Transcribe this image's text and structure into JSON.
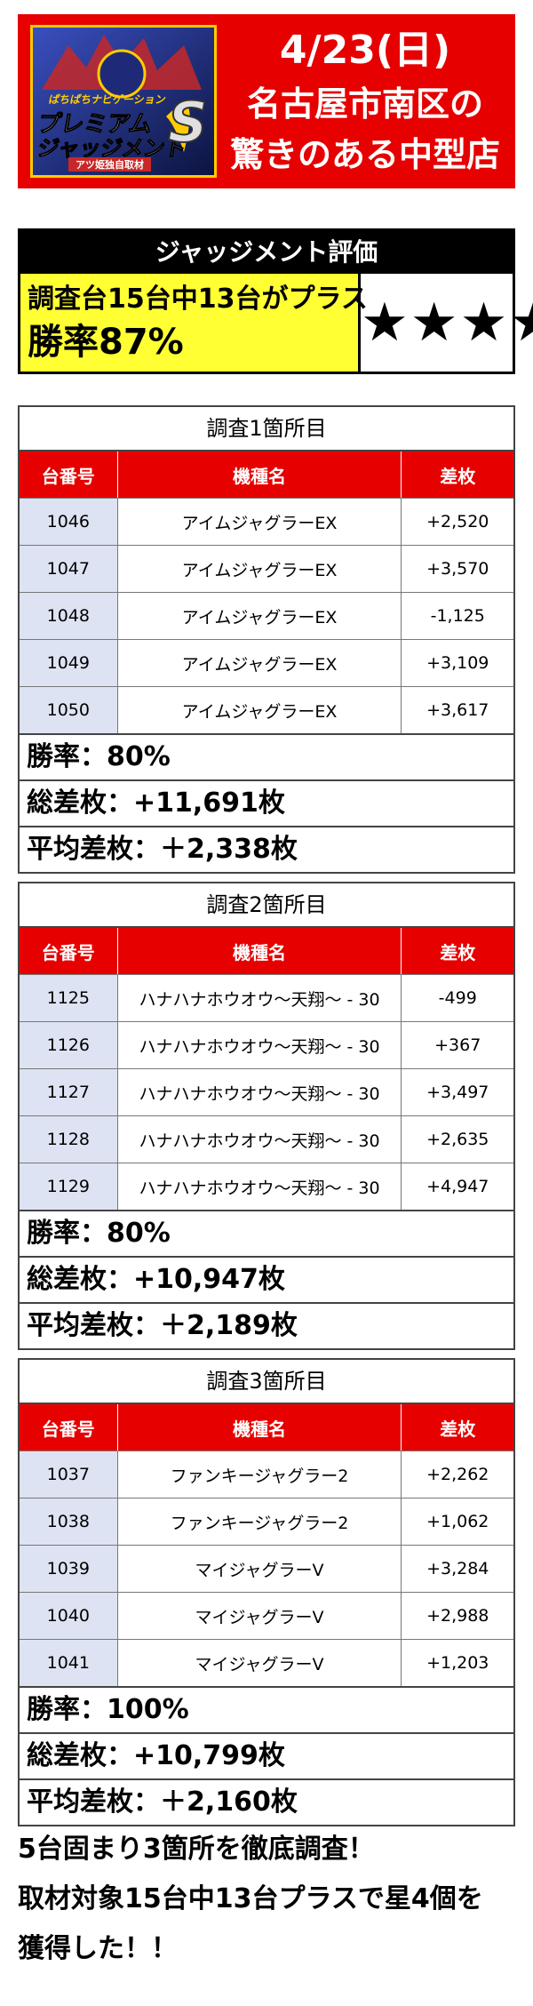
{
  "header": {
    "logo_line1": "ぱちぱちナビゲーション",
    "logo_line2": "プレミアム",
    "logo_line3": "ジャッジメント",
    "logo_mark": "S",
    "logo_sub": "アツ姫独自取材",
    "date": "4/23(日)",
    "line1": "名古屋市南区の",
    "line2": "驚きのある中型店"
  },
  "evaluation": {
    "title": "ジャッジメント評価",
    "summary": "調査台15台中13台がプラス",
    "win_rate": "勝率87%",
    "stars": "★★★★",
    "star_count": 4
  },
  "table_headers": {
    "machine_no": "台番号",
    "model": "機種名",
    "diff": "差枚"
  },
  "surveys": [
    {
      "title": "調査1箇所目",
      "rows": [
        {
          "no": "1046",
          "model": "アイムジャグラーEX",
          "diff": "+2,520"
        },
        {
          "no": "1047",
          "model": "アイムジャグラーEX",
          "diff": "+3,570"
        },
        {
          "no": "1048",
          "model": "アイムジャグラーEX",
          "diff": "-1,125"
        },
        {
          "no": "1049",
          "model": "アイムジャグラーEX",
          "diff": "+3,109"
        },
        {
          "no": "1050",
          "model": "アイムジャグラーEX",
          "diff": "+3,617"
        }
      ],
      "win_rate": "勝率：80%",
      "total": "総差枚：+11,691枚",
      "average": "平均差枚：＋2,338枚"
    },
    {
      "title": "調査2箇所目",
      "rows": [
        {
          "no": "1125",
          "model": "ハナハナホウオウ～天翔～ - 30",
          "diff": "-499"
        },
        {
          "no": "1126",
          "model": "ハナハナホウオウ～天翔～ - 30",
          "diff": "+367"
        },
        {
          "no": "1127",
          "model": "ハナハナホウオウ～天翔～ - 30",
          "diff": "+3,497"
        },
        {
          "no": "1128",
          "model": "ハナハナホウオウ～天翔～ - 30",
          "diff": "+2,635"
        },
        {
          "no": "1129",
          "model": "ハナハナホウオウ～天翔～ - 30",
          "diff": "+4,947"
        }
      ],
      "win_rate": "勝率：80%",
      "total": "総差枚：+10,947枚",
      "average": "平均差枚：＋2,189枚"
    },
    {
      "title": "調査3箇所目",
      "rows": [
        {
          "no": "1037",
          "model": "ファンキージャグラー2",
          "diff": "+2,262"
        },
        {
          "no": "1038",
          "model": "ファンキージャグラー2",
          "diff": "+1,062"
        },
        {
          "no": "1039",
          "model": "マイジャグラーV",
          "diff": "+3,284"
        },
        {
          "no": "1040",
          "model": "マイジャグラーV",
          "diff": "+2,988"
        },
        {
          "no": "1041",
          "model": "マイジャグラーV",
          "diff": "+1,203"
        }
      ],
      "win_rate": "勝率：100%",
      "total": "総差枚：+10,799枚",
      "average": "平均差枚：＋2,160枚"
    }
  ],
  "footer": {
    "line1": "5台固まり3箇所を徹底調査！",
    "line2": "取材対象15台中13台プラスで星4個を",
    "line3": "獲得した！！"
  },
  "colors": {
    "banner_red": "#e60000",
    "header_row_red": "#e60000",
    "highlight_yellow": "#ffff33",
    "number_cell_blue": "#dde3f2",
    "eval_title_black": "#000000"
  }
}
